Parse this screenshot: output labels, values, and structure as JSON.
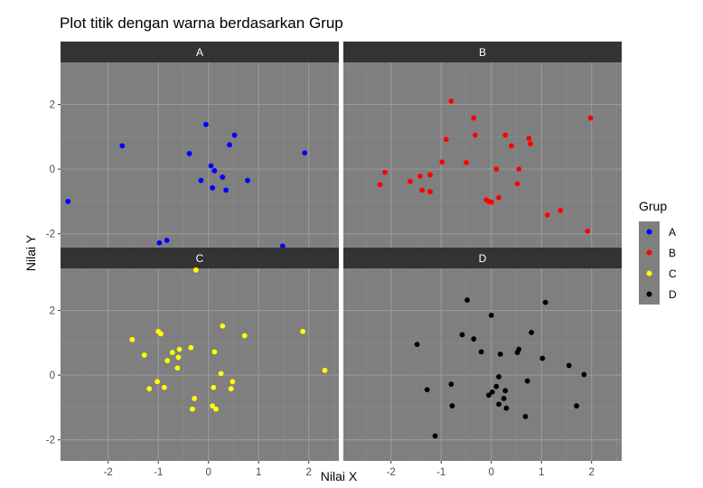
{
  "chart_data": {
    "type": "scatter",
    "title": "Plot titik dengan warna berdasarkan Grup",
    "xlabel": "Nilai X",
    "ylabel": "Nilai Y",
    "xlim": [
      -2.95,
      2.6
    ],
    "ylim": [
      -2.65,
      3.3
    ],
    "x_ticks": [
      -2,
      -1,
      0,
      1,
      2
    ],
    "y_ticks": [
      -2,
      0,
      2
    ],
    "facet_layout": "2x2",
    "grid": true,
    "legend": {
      "title": "Grup",
      "position": "right",
      "entries": [
        {
          "label": "A",
          "color": "#0000ff"
        },
        {
          "label": "B",
          "color": "#ff0000"
        },
        {
          "label": "C",
          "color": "#ffff00"
        },
        {
          "label": "D",
          "color": "#000000"
        }
      ]
    },
    "series": [
      {
        "name": "A",
        "color": "#0000ff",
        "points": [
          [
            -2.8,
            -1.0
          ],
          [
            -1.72,
            0.72
          ],
          [
            -0.98,
            -2.28
          ],
          [
            -0.83,
            -2.2
          ],
          [
            -0.38,
            0.48
          ],
          [
            -0.15,
            -0.35
          ],
          [
            -0.05,
            1.38
          ],
          [
            0.05,
            0.1
          ],
          [
            0.08,
            -0.58
          ],
          [
            0.12,
            -0.05
          ],
          [
            0.28,
            -0.25
          ],
          [
            0.35,
            -0.65
          ],
          [
            0.42,
            0.75
          ],
          [
            0.52,
            1.05
          ],
          [
            0.78,
            -0.35
          ],
          [
            1.48,
            -2.38
          ],
          [
            1.92,
            0.5
          ]
        ]
      },
      {
        "name": "B",
        "color": "#ff0000",
        "points": [
          [
            -2.22,
            -0.48
          ],
          [
            -2.12,
            -0.1
          ],
          [
            -1.62,
            -0.38
          ],
          [
            -1.42,
            -0.22
          ],
          [
            -1.38,
            -0.65
          ],
          [
            -1.22,
            -0.7
          ],
          [
            -1.22,
            -0.18
          ],
          [
            -0.98,
            0.22
          ],
          [
            -0.9,
            0.92
          ],
          [
            -0.8,
            2.1
          ],
          [
            -0.5,
            0.2
          ],
          [
            -0.35,
            1.58
          ],
          [
            -0.32,
            1.05
          ],
          [
            -0.1,
            -0.95
          ],
          [
            -0.05,
            -1.0
          ],
          [
            0.0,
            -1.02
          ],
          [
            0.1,
            0.0
          ],
          [
            0.15,
            -0.88
          ],
          [
            0.28,
            1.05
          ],
          [
            0.4,
            0.72
          ],
          [
            0.52,
            -0.45
          ],
          [
            0.55,
            0.0
          ],
          [
            0.75,
            0.95
          ],
          [
            0.78,
            0.78
          ],
          [
            1.12,
            -1.42
          ],
          [
            1.38,
            -1.28
          ],
          [
            1.92,
            -1.92
          ],
          [
            1.98,
            1.58
          ]
        ]
      },
      {
        "name": "C",
        "color": "#ffff00",
        "points": [
          [
            -1.52,
            1.1
          ],
          [
            -1.28,
            0.62
          ],
          [
            -1.18,
            -0.42
          ],
          [
            -1.02,
            -0.2
          ],
          [
            -1.0,
            1.35
          ],
          [
            -0.95,
            1.28
          ],
          [
            -0.88,
            -0.38
          ],
          [
            -0.82,
            0.45
          ],
          [
            -0.72,
            0.7
          ],
          [
            -0.62,
            0.22
          ],
          [
            -0.6,
            0.55
          ],
          [
            -0.58,
            0.8
          ],
          [
            -0.35,
            0.85
          ],
          [
            -0.32,
            -1.05
          ],
          [
            -0.28,
            -0.72
          ],
          [
            -0.25,
            3.25
          ],
          [
            0.08,
            -0.95
          ],
          [
            0.1,
            -0.38
          ],
          [
            0.12,
            0.72
          ],
          [
            0.15,
            -1.05
          ],
          [
            0.25,
            0.05
          ],
          [
            0.28,
            1.52
          ],
          [
            0.45,
            -0.42
          ],
          [
            0.48,
            -0.2
          ],
          [
            0.72,
            1.22
          ],
          [
            1.88,
            1.35
          ],
          [
            2.32,
            0.15
          ]
        ]
      },
      {
        "name": "D",
        "color": "#000000",
        "points": [
          [
            -1.48,
            0.95
          ],
          [
            -1.28,
            -0.45
          ],
          [
            -1.12,
            -1.88
          ],
          [
            -0.8,
            -0.28
          ],
          [
            -0.78,
            -0.95
          ],
          [
            -0.58,
            1.25
          ],
          [
            -0.48,
            2.32
          ],
          [
            -0.35,
            1.12
          ],
          [
            -0.2,
            0.72
          ],
          [
            -0.05,
            -0.62
          ],
          [
            0.0,
            1.85
          ],
          [
            0.02,
            -0.52
          ],
          [
            0.1,
            -0.35
          ],
          [
            0.15,
            -0.9
          ],
          [
            0.15,
            -0.05
          ],
          [
            0.18,
            0.65
          ],
          [
            0.25,
            -0.72
          ],
          [
            0.28,
            -0.48
          ],
          [
            0.3,
            -1.02
          ],
          [
            0.52,
            0.7
          ],
          [
            0.55,
            0.8
          ],
          [
            0.68,
            -1.28
          ],
          [
            0.72,
            -0.18
          ],
          [
            0.8,
            1.32
          ],
          [
            1.02,
            0.52
          ],
          [
            1.08,
            2.25
          ],
          [
            1.55,
            0.3
          ],
          [
            1.7,
            -0.95
          ],
          [
            1.85,
            0.02
          ]
        ]
      }
    ]
  }
}
